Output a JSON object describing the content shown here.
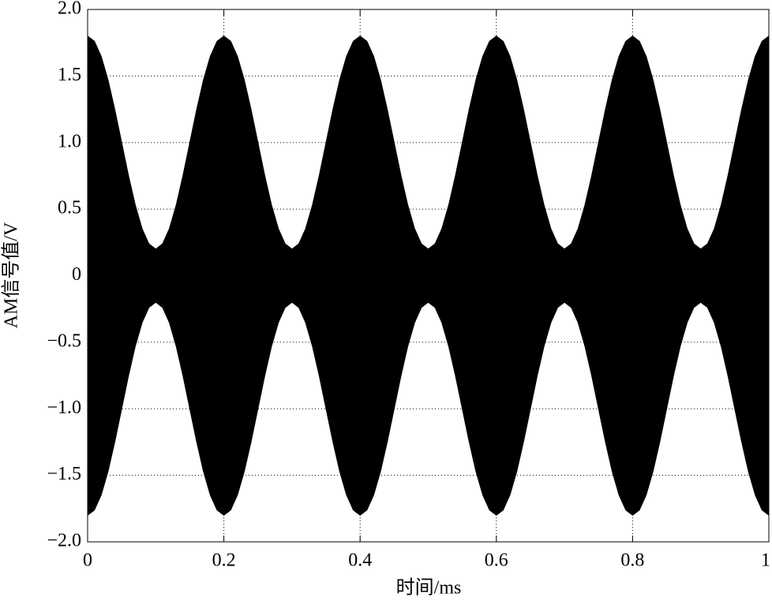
{
  "chart_data": {
    "type": "band",
    "xlabel": "时间/ms",
    "ylabel": "AM信号值/V",
    "color": "#000000",
    "grid": true,
    "xlim": [
      0,
      1
    ],
    "ylim": [
      -2,
      2
    ],
    "xticks": [
      0,
      0.2,
      0.4,
      0.6,
      0.8,
      1
    ],
    "yticks": [
      {
        "value": -2,
        "label": "−2.0"
      },
      {
        "value": -1.5,
        "label": "−1.5"
      },
      {
        "value": -1,
        "label": "−1.0"
      },
      {
        "value": -0.5,
        "label": "−0.5"
      },
      0,
      0.5,
      {
        "value": 1,
        "label": "1.0"
      },
      1.5,
      {
        "value": 2,
        "label": "2.0"
      }
    ],
    "x": [
      0,
      0.01,
      0.02,
      0.03,
      0.04,
      0.05,
      0.06,
      0.07,
      0.08,
      0.09,
      0.1,
      0.11,
      0.12,
      0.13,
      0.14,
      0.15,
      0.16,
      0.17,
      0.18,
      0.19,
      0.2,
      0.21,
      0.22,
      0.23,
      0.24,
      0.25,
      0.26,
      0.27,
      0.28,
      0.29,
      0.3,
      0.31,
      0.32,
      0.33,
      0.34,
      0.35,
      0.36,
      0.37,
      0.38,
      0.39,
      0.4,
      0.41,
      0.42,
      0.43,
      0.44,
      0.45,
      0.46,
      0.47,
      0.48,
      0.49,
      0.5,
      0.51,
      0.52,
      0.53,
      0.54,
      0.55,
      0.56,
      0.57,
      0.58,
      0.59,
      0.6,
      0.61,
      0.62,
      0.63,
      0.64,
      0.65,
      0.66,
      0.67,
      0.68,
      0.69,
      0.7,
      0.71,
      0.72,
      0.73,
      0.74,
      0.75,
      0.76,
      0.77,
      0.78,
      0.79,
      0.8,
      0.81,
      0.82,
      0.83,
      0.84,
      0.85,
      0.86,
      0.87,
      0.88,
      0.89,
      0.9,
      0.91,
      0.92,
      0.93,
      0.94,
      0.95,
      0.96,
      0.97,
      0.98,
      0.99,
      1
    ],
    "series": [
      {
        "values": [
          1.8,
          1.761,
          1.647,
          1.47,
          1.247,
          1,
          0.753,
          0.53,
          0.353,
          0.239,
          0.2,
          0.239,
          0.353,
          0.53,
          0.753,
          1,
          1.247,
          1.47,
          1.647,
          1.761,
          1.8,
          1.761,
          1.647,
          1.47,
          1.247,
          1,
          0.753,
          0.53,
          0.353,
          0.239,
          0.2,
          0.239,
          0.353,
          0.53,
          0.753,
          1,
          1.247,
          1.47,
          1.647,
          1.761,
          1.8,
          1.761,
          1.647,
          1.47,
          1.247,
          1,
          0.753,
          0.53,
          0.353,
          0.239,
          0.2,
          0.239,
          0.353,
          0.53,
          0.753,
          1,
          1.247,
          1.47,
          1.647,
          1.761,
          1.8,
          1.761,
          1.647,
          1.47,
          1.247,
          1,
          0.753,
          0.53,
          0.353,
          0.239,
          0.2,
          0.239,
          0.353,
          0.53,
          0.753,
          1,
          1.247,
          1.47,
          1.647,
          1.761,
          1.8,
          1.761,
          1.647,
          1.47,
          1.247,
          1,
          0.753,
          0.53,
          0.353,
          0.239,
          0.2,
          0.239,
          0.353,
          0.53,
          0.753,
          1,
          1.247,
          1.47,
          1.647,
          1.761,
          1.8
        ]
      },
      {
        "values": [
          -1.8,
          -1.761,
          -1.647,
          -1.47,
          -1.247,
          -1,
          -0.753,
          -0.53,
          -0.353,
          -0.239,
          -0.2,
          -0.239,
          -0.353,
          -0.53,
          -0.753,
          -1,
          -1.247,
          -1.47,
          -1.647,
          -1.761,
          -1.8,
          -1.761,
          -1.647,
          -1.47,
          -1.247,
          -1,
          -0.753,
          -0.53,
          -0.353,
          -0.239,
          -0.2,
          -0.239,
          -0.353,
          -0.53,
          -0.753,
          -1,
          -1.247,
          -1.47,
          -1.647,
          -1.761,
          -1.8,
          -1.761,
          -1.647,
          -1.47,
          -1.247,
          -1,
          -0.753,
          -0.53,
          -0.353,
          -0.239,
          -0.2,
          -0.239,
          -0.353,
          -0.53,
          -0.753,
          -1,
          -1.247,
          -1.47,
          -1.647,
          -1.761,
          -1.8,
          -1.761,
          -1.647,
          -1.47,
          -1.247,
          -1,
          -0.753,
          -0.53,
          -0.353,
          -0.239,
          -0.2,
          -0.239,
          -0.353,
          -0.53,
          -0.753,
          -1,
          -1.247,
          -1.47,
          -1.647,
          -1.761,
          -1.8,
          -1.761,
          -1.647,
          -1.47,
          -1.247,
          -1,
          -0.753,
          -0.53,
          -0.353,
          -0.239,
          -0.2,
          -0.239,
          -0.353,
          -0.53,
          -0.753,
          -1,
          -1.247,
          -1.47,
          -1.647,
          -1.761,
          -1.8
        ]
      }
    ]
  }
}
